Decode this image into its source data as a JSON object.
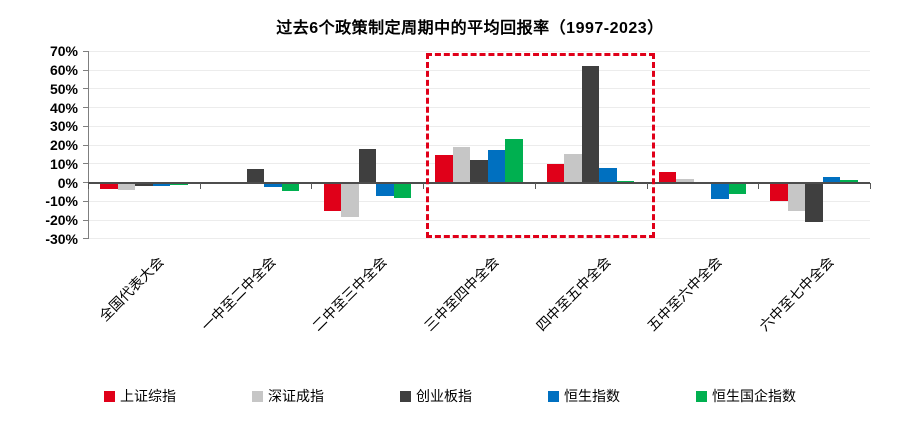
{
  "chart_data": {
    "type": "bar",
    "title": "过去6个政策制定周期中的平均回报率（1997-2023）",
    "categories": [
      "全国代表大会",
      "一中至二中全会",
      "二中至三中全会",
      "三中至四中全会",
      "四中至五中全会",
      "五中至六中全会",
      "六中至七中全会"
    ],
    "series": [
      {
        "name": "上证综指",
        "color": "#e00019",
        "values": [
          -3.5,
          -0.5,
          -15,
          14.5,
          10,
          5.5,
          -10
        ]
      },
      {
        "name": "深证成指",
        "color": "#c6c6c6",
        "values": [
          -4,
          -0.5,
          -18.5,
          19,
          15,
          2,
          -15
        ]
      },
      {
        "name": "创业板指",
        "color": "#3f3f3f",
        "values": [
          -2,
          7,
          18,
          12,
          62,
          -1,
          -21
        ]
      },
      {
        "name": "恒生指数",
        "color": "#0070c0",
        "values": [
          -2,
          -2.5,
          -7,
          17.5,
          8,
          -9,
          3
        ]
      },
      {
        "name": "恒生国企指数",
        "color": "#00b050",
        "values": [
          -1.5,
          -4.5,
          -8,
          23,
          1,
          -6,
          1.5
        ]
      }
    ],
    "ylabel": "",
    "xlabel": "",
    "ylim": [
      -30,
      70
    ],
    "y_tick_step": 10,
    "y_tick_labels": [
      "70%",
      "60%",
      "50%",
      "40%",
      "30%",
      "20%",
      "10%",
      "0%",
      "-10%",
      "-20%",
      "-30%"
    ],
    "grid": true,
    "legend_position": "bottom",
    "highlight_box": {
      "from_category_index": 3,
      "to_category_index": 4,
      "color": "#e00019",
      "style": "dashed"
    }
  }
}
